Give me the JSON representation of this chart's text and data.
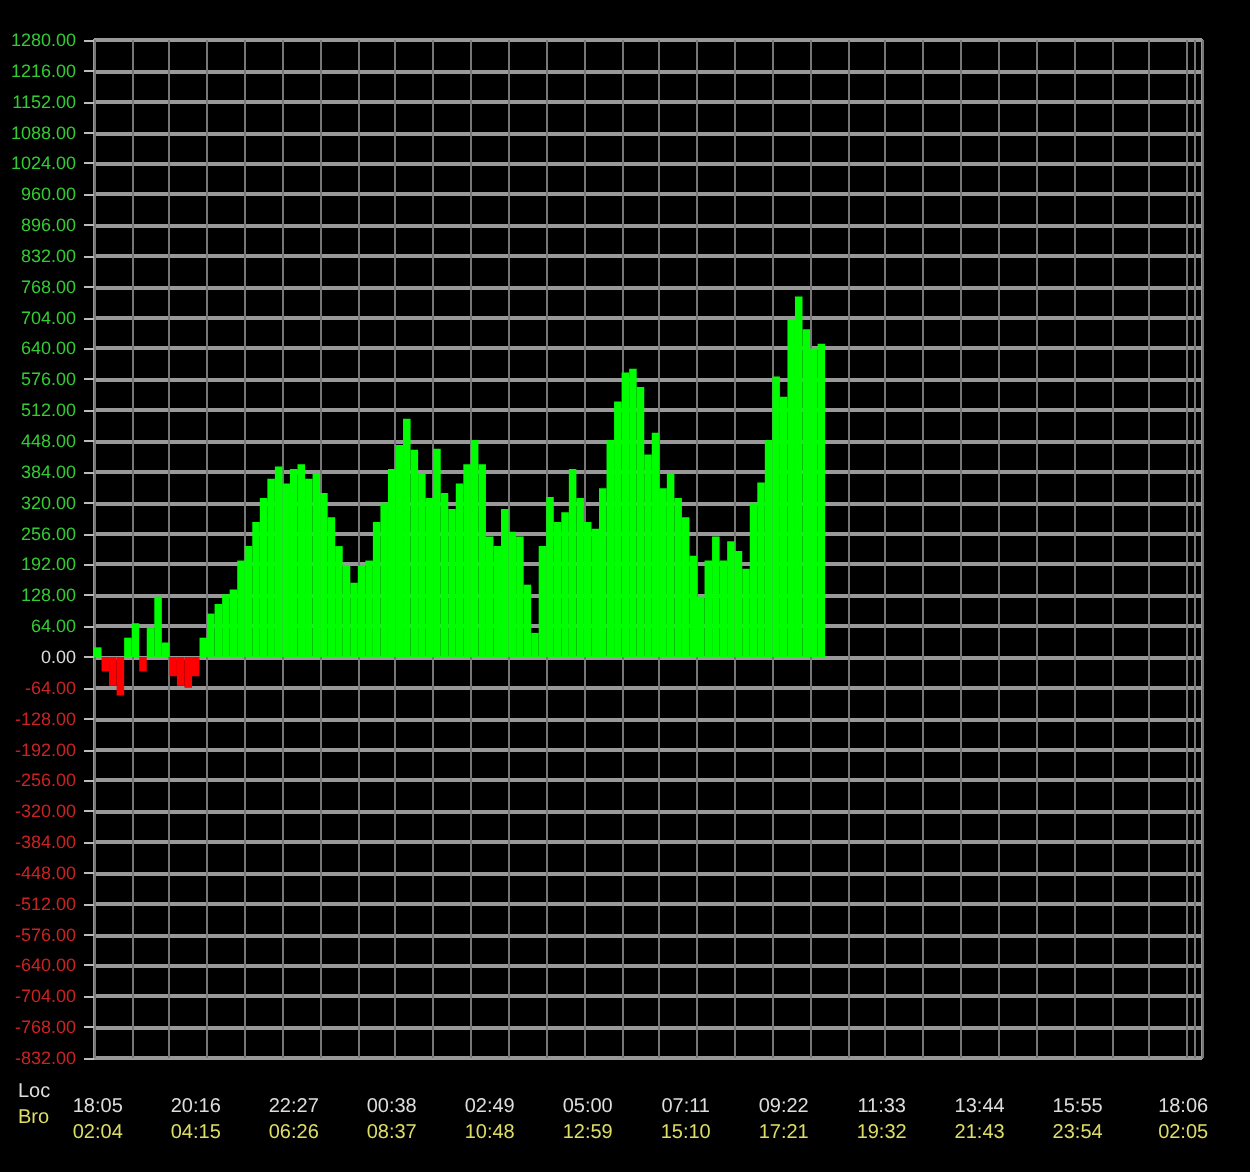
{
  "chart_data": {
    "type": "bar",
    "categories": [
      "18:05\n02:04",
      null,
      null,
      null,
      null,
      null,
      null,
      null,
      null,
      null,
      null,
      null,
      null,
      "20:16\n04:15",
      null,
      null,
      null,
      null,
      null,
      null,
      null,
      null,
      null,
      null,
      null,
      null,
      "22:27\n06:26",
      null,
      null,
      null,
      null,
      null,
      null,
      null,
      null,
      null,
      null,
      null,
      null,
      "00:38\n08:37",
      null,
      null,
      null,
      null,
      null,
      null,
      null,
      null,
      null,
      null,
      null,
      null,
      "02:49\n10:48",
      null,
      null,
      null,
      null,
      null,
      null,
      null,
      null,
      null,
      null,
      null,
      null,
      "05:00\n12:59",
      null,
      null,
      null,
      null,
      null,
      null,
      null,
      null,
      null,
      null,
      null,
      null,
      "07:11\n15:10",
      null,
      null,
      null,
      null,
      null,
      null,
      null,
      null,
      null,
      null,
      null,
      null,
      "09:22\n17:21",
      null,
      null,
      null,
      null,
      null,
      null,
      null,
      null,
      null,
      null,
      null,
      null,
      "11:33\n19:32",
      null,
      null,
      null,
      null,
      null,
      null,
      null,
      null,
      null,
      null,
      null,
      null,
      "13:44\n21:43",
      null,
      null,
      null,
      null,
      null,
      null,
      null,
      null,
      null,
      null,
      null,
      null,
      "15:55\n23:54",
      null,
      null,
      null,
      null,
      null,
      null,
      null,
      null,
      null,
      null,
      null,
      null,
      null,
      "18:06\n02:05",
      null,
      null
    ],
    "values": [
      20,
      -30,
      -60,
      -80,
      40,
      70,
      -30,
      60,
      125,
      30,
      -40,
      -60,
      -64,
      -40,
      40,
      90,
      110,
      130,
      140,
      200,
      230,
      280,
      330,
      370,
      395,
      360,
      390,
      400,
      370,
      380,
      340,
      290,
      230,
      190,
      154,
      190,
      200,
      280,
      320,
      390,
      440,
      494,
      430,
      380,
      330,
      432,
      340,
      307,
      360,
      400,
      450,
      400,
      250,
      230,
      307,
      260,
      250,
      150,
      50,
      230,
      332,
      280,
      300,
      390,
      330,
      280,
      266,
      350,
      450,
      530,
      590,
      598,
      560,
      420,
      465,
      350,
      380,
      330,
      290,
      210,
      125,
      200,
      250,
      200,
      240,
      220,
      183,
      320,
      362,
      450,
      582,
      540,
      700,
      748,
      680,
      640,
      650,
      null,
      null,
      null,
      null,
      null,
      null,
      null,
      null,
      null,
      null,
      null,
      null,
      null,
      null,
      null,
      null,
      null,
      null,
      null,
      null,
      null,
      null,
      null,
      null,
      null,
      null,
      null,
      null,
      null,
      null,
      null,
      null,
      null,
      null,
      null,
      null,
      null,
      null,
      null,
      null,
      null,
      null,
      null,
      null,
      null,
      null,
      null,
      null,
      null,
      null
    ],
    "colors": [
      "#00ff00",
      "#ff0000",
      "#ff0000",
      "#ff0000",
      "#00ff00",
      "#00ff00",
      "#ff0000",
      "#00ff00",
      "#00ff00",
      "#00ff00",
      "#ff0000",
      "#ff0000",
      "#ff0000",
      "#ff0000",
      "#00ff00",
      "#00ff00",
      "#00ff00",
      "#00ff00",
      "#00ff00",
      "#00ff00",
      "#00ff00",
      "#00ff00",
      "#00ff00",
      "#00ff00",
      "#00ff00",
      "#00ff00",
      "#00ff00",
      "#00ff00",
      "#00ff00",
      "#00ff00",
      "#00ff00",
      "#00ff00",
      "#00ff00",
      "#00ff00",
      "#00ff00",
      "#00ff00",
      "#00ff00",
      "#00ff00",
      "#00ff00",
      "#00ff00",
      "#00ff00",
      "#00ff00",
      "#00ff00",
      "#00ff00",
      "#00ff00",
      "#00ff00",
      "#00ff00",
      "#00ff00",
      "#00ff00",
      "#00ff00",
      "#00ff00",
      "#00ff00",
      "#00ff00",
      "#00ff00",
      "#00ff00",
      "#00ff00",
      "#00ff00",
      "#00ff00",
      "#00ff00",
      "#00ff00",
      "#00ff00",
      "#00ff00",
      "#00ff00",
      "#00ff00",
      "#00ff00",
      "#00ff00",
      "#00ff00",
      "#00ff00",
      "#00ff00",
      "#00ff00",
      "#00ff00",
      "#00ff00",
      "#00ff00",
      "#00ff00",
      "#00ff00",
      "#00ff00",
      "#00ff00",
      "#00ff00",
      "#00ff00",
      "#00ff00",
      "#00ff00",
      "#00ff00",
      "#00ff00",
      "#00ff00",
      "#00ff00",
      "#00ff00",
      "#00ff00",
      "#00ff00",
      "#00ff00",
      "#00ff00",
      "#00ff00",
      "#00ff00",
      "#00ff00",
      "#00ff00",
      "#00ff00",
      "#00ff00",
      "#00ff00",
      null,
      null,
      null,
      null,
      null,
      null,
      null,
      null,
      null,
      null,
      null,
      null,
      null,
      null,
      null,
      null,
      null,
      null,
      null,
      null,
      null,
      null,
      null,
      null,
      null,
      null,
      null,
      null,
      null,
      null,
      null,
      null,
      null,
      null,
      null,
      null,
      null,
      null,
      null,
      null,
      null,
      null,
      null,
      null,
      null,
      null,
      null,
      null,
      null,
      null
    ],
    "ylim": [
      -832,
      1280
    ],
    "yticks": [
      {
        "value": -832,
        "label": "-832.00"
      },
      {
        "value": -768,
        "label": "-768.00"
      },
      {
        "value": -704,
        "label": "-704.00"
      },
      {
        "value": -640,
        "label": "-640.00"
      },
      {
        "value": -576,
        "label": "-576.00"
      },
      {
        "value": -512,
        "label": "-512.00"
      },
      {
        "value": -448,
        "label": "-448.00"
      },
      {
        "value": -384,
        "label": "-384.00"
      },
      {
        "value": -320,
        "label": "-320.00"
      },
      {
        "value": -256,
        "label": "-256.00"
      },
      {
        "value": -192,
        "label": "-192.00"
      },
      {
        "value": -128,
        "label": "-128.00"
      },
      {
        "value": -64,
        "label": "-64.00"
      },
      {
        "value": 0,
        "label": "0.00"
      },
      {
        "value": 64,
        "label": "64.00"
      },
      {
        "value": 128,
        "label": "128.00"
      },
      {
        "value": 192,
        "label": "192.00"
      },
      {
        "value": 256,
        "label": "256.00"
      },
      {
        "value": 320,
        "label": "320.00"
      },
      {
        "value": 384,
        "label": "384.00"
      },
      {
        "value": 448,
        "label": "448.00"
      },
      {
        "value": 512,
        "label": "512.00"
      },
      {
        "value": 576,
        "label": "576.00"
      },
      {
        "value": 640,
        "label": "640.00"
      },
      {
        "value": 704,
        "label": "704.00"
      },
      {
        "value": 768,
        "label": "768.00"
      },
      {
        "value": 832,
        "label": "832.00"
      },
      {
        "value": 896,
        "label": "896.00"
      },
      {
        "value": 960,
        "label": "960.00"
      },
      {
        "value": 1024,
        "label": "1024.00"
      },
      {
        "value": 1088,
        "label": "1088.00"
      },
      {
        "value": 1152,
        "label": "1152.00"
      },
      {
        "value": 1216,
        "label": "1216.00"
      },
      {
        "value": 1280,
        "label": "1280.00"
      }
    ],
    "grid": true,
    "annotations": [
      "Loc",
      "Bro"
    ]
  }
}
